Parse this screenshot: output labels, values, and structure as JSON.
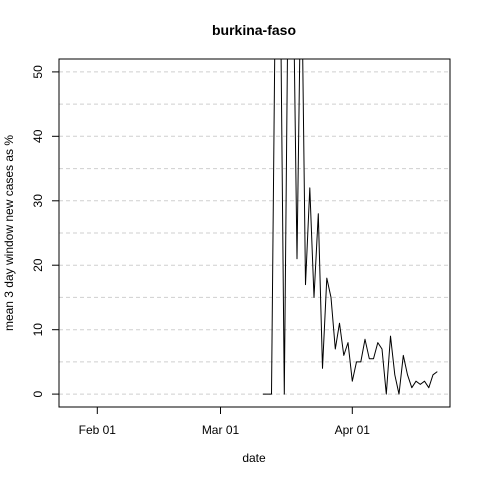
{
  "chart_data": {
    "type": "line",
    "title": "burkina-faso",
    "xlabel": "date",
    "ylabel": "mean  3  day window new cases as %",
    "grid": true,
    "ylim": [
      -2,
      52
    ],
    "xlim": [
      "2020-01-23",
      "2020-04-24"
    ],
    "x_ticks": [
      {
        "date": "2020-02-01",
        "label": "Feb 01"
      },
      {
        "date": "2020-03-01",
        "label": "Mar 01"
      },
      {
        "date": "2020-04-01",
        "label": "Apr 01"
      }
    ],
    "y_ticks": [
      0,
      10,
      20,
      30,
      40,
      50
    ],
    "y_grid": [
      0,
      5,
      10,
      15,
      20,
      25,
      30,
      35,
      40,
      45,
      50
    ],
    "series": [
      {
        "x": [
          "2020-03-11",
          "2020-03-12",
          "2020-03-13",
          "2020-03-14",
          "2020-03-15",
          "2020-03-16",
          "2020-03-17",
          "2020-03-18",
          "2020-03-19",
          "2020-03-20",
          "2020-03-21",
          "2020-03-22",
          "2020-03-23",
          "2020-03-24",
          "2020-03-25",
          "2020-03-26",
          "2020-03-27",
          "2020-03-28",
          "2020-03-29",
          "2020-03-30",
          "2020-03-31",
          "2020-04-01",
          "2020-04-02",
          "2020-04-03",
          "2020-04-04",
          "2020-04-05",
          "2020-04-06",
          "2020-04-07",
          "2020-04-08",
          "2020-04-09",
          "2020-04-10",
          "2020-04-11",
          "2020-04-12",
          "2020-04-13",
          "2020-04-14",
          "2020-04-15",
          "2020-04-16",
          "2020-04-17",
          "2020-04-18",
          "2020-04-19",
          "2020-04-20",
          "2020-04-21"
        ],
        "y": [
          0,
          0,
          0,
          70,
          70,
          0,
          70,
          70,
          21,
          70,
          17,
          32,
          15,
          28,
          4,
          18,
          15,
          7,
          11,
          6,
          8,
          2,
          5,
          5,
          8.5,
          5.5,
          5.5,
          8,
          7,
          0,
          9,
          3,
          0,
          6,
          3,
          1,
          2,
          1.5,
          2,
          1,
          3,
          3.5
        ]
      }
    ]
  }
}
